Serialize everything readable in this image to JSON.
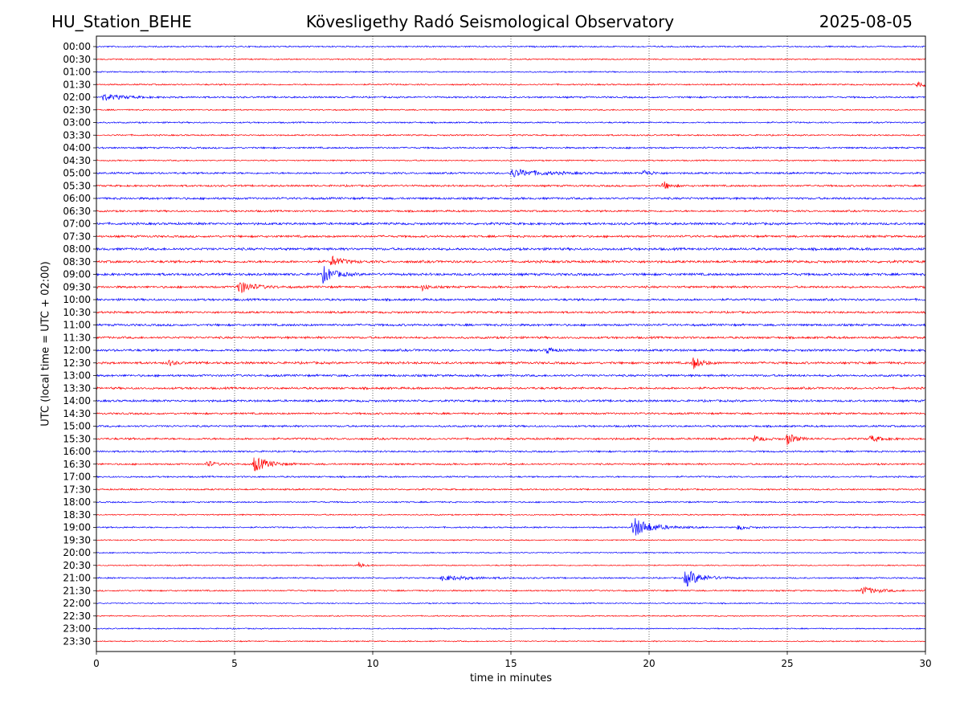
{
  "header": {
    "station": "HU_Station_BEHE",
    "observatory": "Kövesligethy Radó Seismological Observatory",
    "date": "2025-08-05"
  },
  "chart_data": {
    "type": "line",
    "xlabel": "time in minutes",
    "ylabel": "UTC (local time = UTC + 02:00)",
    "xlim": [
      0,
      30
    ],
    "x_ticks": [
      0,
      5,
      10,
      15,
      20,
      25,
      30
    ],
    "grid": "vertical dotted at 5-minute ticks",
    "colors": {
      "even_rows": "#0000ff",
      "odd_rows": "#ff0000"
    },
    "rows": [
      "00:00",
      "00:30",
      "01:00",
      "01:30",
      "02:00",
      "02:30",
      "03:00",
      "03:30",
      "04:00",
      "04:30",
      "05:00",
      "05:30",
      "06:00",
      "06:30",
      "07:00",
      "07:30",
      "08:00",
      "08:30",
      "09:00",
      "09:30",
      "10:00",
      "10:30",
      "11:00",
      "11:30",
      "12:00",
      "12:30",
      "13:00",
      "13:30",
      "14:00",
      "14:30",
      "15:00",
      "15:30",
      "16:00",
      "16:30",
      "17:00",
      "17:30",
      "18:00",
      "18:30",
      "19:00",
      "19:30",
      "20:00",
      "20:30",
      "21:00",
      "21:30",
      "22:00",
      "22:30",
      "23:00",
      "23:30"
    ],
    "noise_level": [
      1.0,
      0.9,
      0.9,
      1.0,
      1.2,
      0.9,
      1.0,
      1.0,
      1.2,
      0.9,
      1.3,
      1.3,
      1.5,
      1.3,
      1.6,
      1.5,
      1.7,
      1.7,
      1.7,
      1.5,
      1.5,
      1.4,
      1.5,
      1.5,
      1.6,
      1.6,
      1.5,
      1.5,
      1.5,
      1.3,
      1.3,
      1.4,
      1.2,
      1.2,
      1.1,
      1.1,
      1.0,
      0.9,
      1.0,
      0.8,
      0.8,
      0.8,
      1.0,
      1.0,
      0.8,
      0.8,
      0.8,
      0.8
    ],
    "events": [
      {
        "row": "01:30",
        "minute": 29.7,
        "amplitude": 5,
        "duration": 0.35
      },
      {
        "row": "02:00",
        "minute": 0.2,
        "amplitude": 4,
        "duration": 1.0
      },
      {
        "row": "05:00",
        "minute": 15.0,
        "amplitude": 5,
        "duration": 1.5
      },
      {
        "row": "05:00",
        "minute": 19.8,
        "amplitude": 4,
        "duration": 0.4
      },
      {
        "row": "05:30",
        "minute": 20.5,
        "amplitude": 6,
        "duration": 0.3
      },
      {
        "row": "08:30",
        "minute": 8.5,
        "amplitude": 7,
        "duration": 0.5
      },
      {
        "row": "09:00",
        "minute": 8.2,
        "amplitude": 10,
        "duration": 0.6
      },
      {
        "row": "09:30",
        "minute": 5.1,
        "amplitude": 9,
        "duration": 0.7
      },
      {
        "row": "09:30",
        "minute": 11.8,
        "amplitude": 4,
        "duration": 0.3
      },
      {
        "row": "12:00",
        "minute": 16.3,
        "amplitude": 4,
        "duration": 0.3
      },
      {
        "row": "12:30",
        "minute": 21.6,
        "amplitude": 8,
        "duration": 0.4
      },
      {
        "row": "12:30",
        "minute": 2.6,
        "amplitude": 4,
        "duration": 0.3
      },
      {
        "row": "15:30",
        "minute": 25.0,
        "amplitude": 8,
        "duration": 0.4
      },
      {
        "row": "15:30",
        "minute": 23.8,
        "amplitude": 4,
        "duration": 0.4
      },
      {
        "row": "15:30",
        "minute": 28.0,
        "amplitude": 4,
        "duration": 0.5
      },
      {
        "row": "16:30",
        "minute": 5.7,
        "amplitude": 10,
        "duration": 0.7
      },
      {
        "row": "16:30",
        "minute": 4.0,
        "amplitude": 4,
        "duration": 0.4
      },
      {
        "row": "19:00",
        "minute": 19.4,
        "amplitude": 13,
        "duration": 0.9
      },
      {
        "row": "19:00",
        "minute": 23.2,
        "amplitude": 3,
        "duration": 0.5
      },
      {
        "row": "20:30",
        "minute": 9.5,
        "amplitude": 4,
        "duration": 0.2
      },
      {
        "row": "21:00",
        "minute": 21.3,
        "amplitude": 11,
        "duration": 0.8
      },
      {
        "row": "21:00",
        "minute": 12.5,
        "amplitude": 3,
        "duration": 1.5
      },
      {
        "row": "21:30",
        "minute": 27.7,
        "amplitude": 5,
        "duration": 0.8
      }
    ]
  }
}
